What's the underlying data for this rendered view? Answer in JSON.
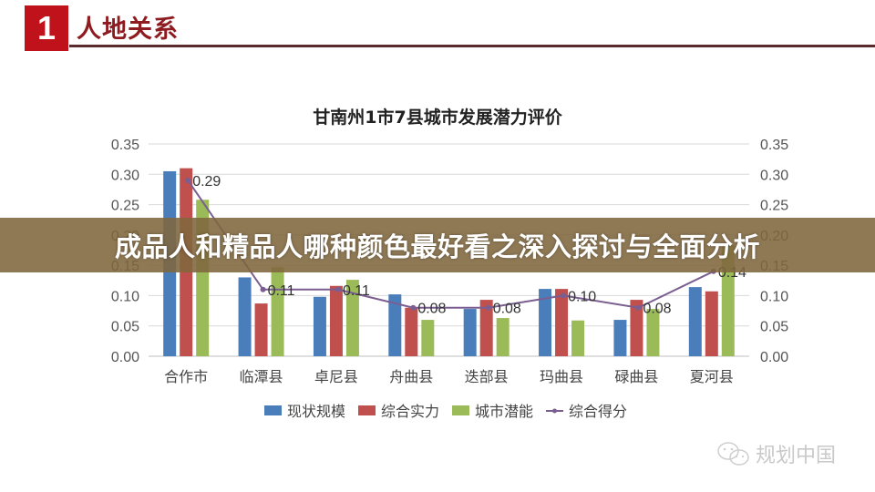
{
  "header": {
    "section_number": "1",
    "section_title": "人地关系"
  },
  "banner": {
    "text": "成品人和精品人哪种颜色最好看之深入探讨与全面分析"
  },
  "watermark": {
    "icon": "wechat-icon",
    "text": "规划中国"
  },
  "colors": {
    "accent_red": "#c0121a",
    "title_red": "#8e1b1f",
    "series_blue": "#4a7ebb",
    "series_red": "#c0504d",
    "series_green": "#9bbb59",
    "series_line": "#7b5e91",
    "banner_bg": "#80663e"
  },
  "chart_data": {
    "type": "bar",
    "title": "甘南州1市7县城市发展潜力评价",
    "xlabel": "",
    "ylabel": "",
    "ylim": [
      0,
      0.35
    ],
    "y2lim": [
      0,
      0.35
    ],
    "yticks": [
      "0.00",
      "0.05",
      "0.10",
      "0.15",
      "0.20",
      "0.25",
      "0.30",
      "0.35"
    ],
    "grid": true,
    "legend_position": "bottom",
    "categories": [
      "合作市",
      "临潭县",
      "卓尼县",
      "舟曲县",
      "迭部县",
      "玛曲县",
      "碌曲县",
      "夏河县"
    ],
    "series": [
      {
        "name": "现状规模",
        "type": "bar",
        "color": "#4a7ebb",
        "values": [
          0.305,
          0.13,
          0.098,
          0.102,
          0.078,
          0.111,
          0.06,
          0.114
        ]
      },
      {
        "name": "综合实力",
        "type": "bar",
        "color": "#c0504d",
        "values": [
          0.31,
          0.087,
          0.116,
          0.08,
          0.093,
          0.111,
          0.093,
          0.107
        ]
      },
      {
        "name": "城市潜能",
        "type": "bar",
        "color": "#9bbb59",
        "values": [
          0.258,
          0.147,
          0.126,
          0.06,
          0.063,
          0.059,
          0.078,
          0.183
        ]
      },
      {
        "name": "综合得分",
        "type": "line",
        "color": "#7b5e91",
        "axis": "right",
        "values": [
          0.29,
          0.11,
          0.11,
          0.08,
          0.08,
          0.1,
          0.08,
          0.14
        ],
        "labels": [
          "0.29",
          "0.11",
          "0.11",
          "0.08",
          "0.08",
          "0.10",
          "0.08",
          "0.14"
        ]
      }
    ]
  }
}
